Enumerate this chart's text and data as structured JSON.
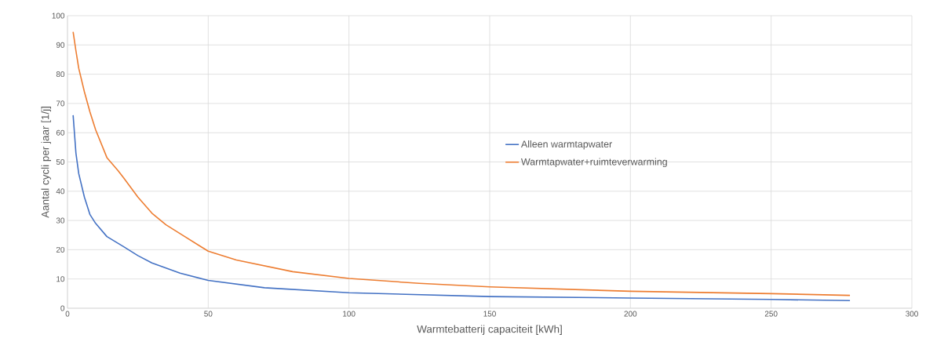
{
  "chart_data": {
    "type": "line",
    "xlabel": "Warmtebatterij capaciteit [kWh]",
    "ylabel": "Aantal cycli per jaar [1/j]",
    "xlim": [
      0,
      300
    ],
    "xticks": [
      0,
      50,
      100,
      150,
      200,
      250,
      300
    ],
    "ylim": [
      0,
      100
    ],
    "yticks": [
      0,
      10,
      20,
      30,
      40,
      50,
      60,
      70,
      80,
      90,
      100
    ],
    "grid": true,
    "legend": "right",
    "marker": "none",
    "line_style": "solid",
    "series": [
      {
        "name": "Alleen warmtapwater",
        "color": "#4472c4",
        "x": [
          2,
          3,
          4,
          6,
          8,
          10,
          14,
          20,
          25,
          30,
          40,
          50,
          70,
          100,
          150,
          200,
          250,
          278
        ],
        "values": [
          66,
          53,
          46,
          38,
          32,
          29,
          24.5,
          21,
          18,
          15.5,
          12,
          9.5,
          7,
          5.3,
          4,
          3.5,
          3,
          2.6
        ]
      },
      {
        "name": "Warmtapwater+ruimteverwarming",
        "color": "#ed7d31",
        "x": [
          2,
          3,
          4,
          6,
          8,
          10,
          14,
          18,
          20,
          25,
          30,
          35,
          40,
          50,
          60,
          70,
          80,
          100,
          125,
          150,
          200,
          250,
          278
        ],
        "values": [
          94.5,
          88,
          82,
          74,
          67,
          61,
          51.5,
          47,
          44.5,
          38,
          32.5,
          28.5,
          25.5,
          19.5,
          16.5,
          14.5,
          12.5,
          10.2,
          8.5,
          7.3,
          5.8,
          5,
          4.4
        ]
      }
    ]
  }
}
